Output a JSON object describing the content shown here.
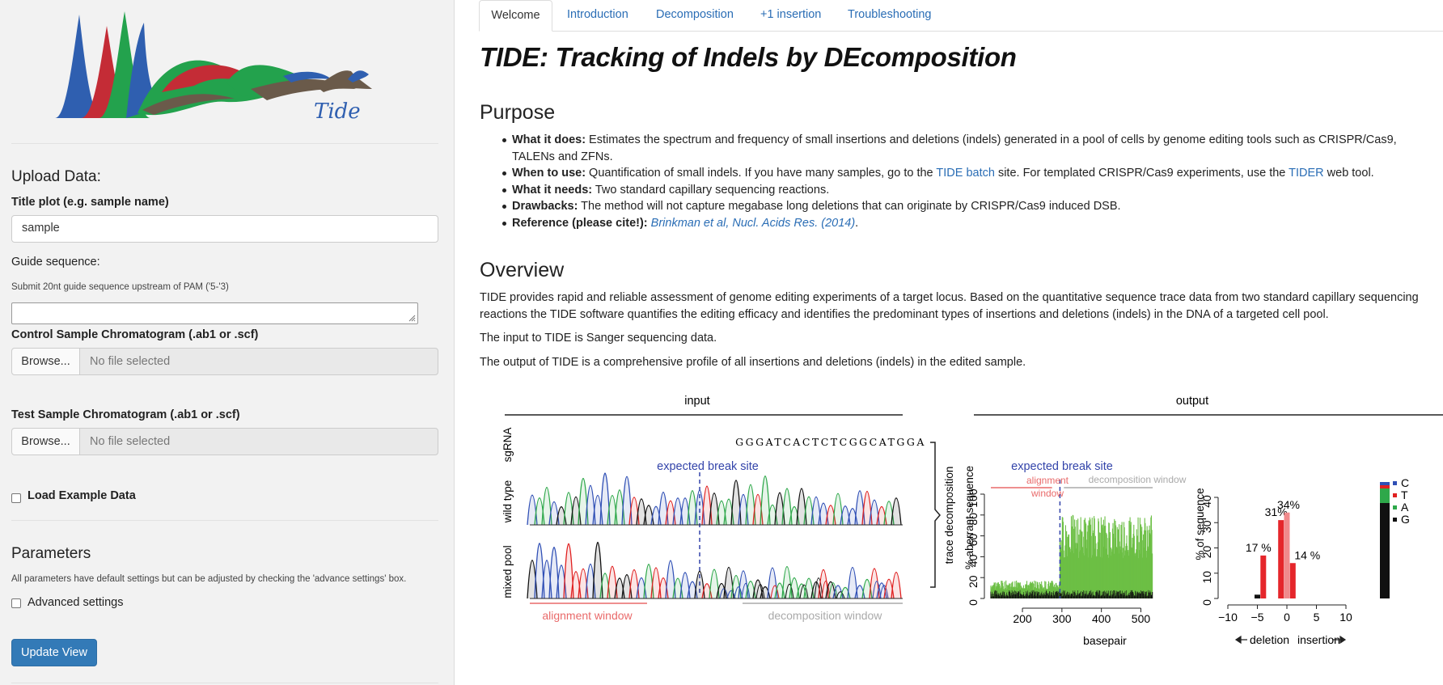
{
  "sidebar": {
    "logo_text": "Tide",
    "upload_heading": "Upload Data:",
    "title_label": "Title plot (e.g. sample name)",
    "title_value": "sample",
    "guide_label": "Guide sequence:",
    "guide_help": "Submit 20nt guide sequence upstream of PAM ('5-'3)",
    "guide_value": "",
    "control_label": "Control Sample Chromatogram (.ab1 or .scf)",
    "control_browse": "Browse...",
    "control_file": "No file selected",
    "test_label": "Test Sample Chromatogram (.ab1 or .scf)",
    "test_browse": "Browse...",
    "test_file": "No file selected",
    "example_label": "Load Example Data",
    "params_heading": "Parameters",
    "params_help": "All parameters have default settings but can be adjusted by checking the 'advance settings' box.",
    "advanced_label": "Advanced settings",
    "update_button": "Update View"
  },
  "tabs": [
    {
      "label": "Welcome",
      "active": true
    },
    {
      "label": "Introduction",
      "active": false
    },
    {
      "label": "Decomposition",
      "active": false
    },
    {
      "label": "+1 insertion",
      "active": false
    },
    {
      "label": "Troubleshooting",
      "active": false
    }
  ],
  "main": {
    "title": "TIDE: Tracking of Indels by DEcomposition",
    "purpose_heading": "Purpose",
    "purpose": {
      "does_label": "What it does:",
      "does_text": " Estimates the spectrum and frequency of small insertions and deletions (indels) generated in a pool of cells by genome editing tools such as CRISPR/Cas9, TALENs and ZFNs.",
      "when_label": "When to use:",
      "when_text1": " Quantification of small indels. If you have many samples, go to the ",
      "when_link1": "TIDE batch",
      "when_text2": " site. For templated CRISPR/Cas9 experiments, use the ",
      "when_link2": "TIDER",
      "when_text3": " web tool.",
      "needs_label": "What it needs:",
      "needs_text": " Two standard capillary sequencing reactions.",
      "draw_label": "Drawbacks:",
      "draw_text": " The method will not capture megabase long deletions that can originate by CRISPR/Cas9 induced DSB.",
      "ref_label": "Reference (please cite!):",
      "ref_link": "Brinkman et al, Nucl. Acids Res. (2014)",
      "ref_end": "."
    },
    "overview_heading": "Overview",
    "overview_p1": "TIDE provides rapid and reliable assessment of genome editing experiments of a target locus. Based on the quantitative sequence trace data from two standard capillary sequencing reactions the TIDE software quantifies the editing efficacy and identifies the predominant types of insertions and deletions (indels) in the DNA of a targeted cell pool.",
    "overview_p2": "The input to TIDE is Sanger sequencing data.",
    "overview_p3": "The output of TIDE is a comprehensive profile of all insertions and deletions (indels) in the edited sample."
  },
  "figure": {
    "input_title": "input",
    "output_title": "output",
    "sgrna_label": "sgRNA",
    "sgrna_seq": "GGGATCACTCTCGGCATGGA",
    "wildtype_label": "wild type",
    "mixed_label": "mixed pool",
    "break_label": "expected break site",
    "alignment_window": "alignment window",
    "decomposition_window": "decomposition window",
    "trace_decomp": "trace decomposition",
    "ylabel1": "% aberrant sequence",
    "xlabel1": "basepair",
    "align_short1": "alignment",
    "align_short2": "window",
    "ylabel2": "% of sequence",
    "deletion": "deletion",
    "insertion": "insertion",
    "legend": [
      "C",
      "T",
      "A",
      "G"
    ],
    "colors": {
      "A": "#2ea84a",
      "C": "#2f4fb5",
      "G": "#111111",
      "T": "#e02020",
      "bp": "#6cbf45",
      "break": "#3344aa",
      "align": "#e96a6a",
      "decomp": "#aaaaaa",
      "bar": "#e5262b",
      "bar_light": "#f08a8c"
    }
  },
  "chart_data": [
    {
      "type": "bar",
      "title": "",
      "xlabel": "basepair",
      "ylabel": "% aberrant sequence",
      "xlim": [
        120,
        540
      ],
      "ylim": [
        0,
        100
      ],
      "x_ticks": [
        200,
        300,
        400,
        500
      ],
      "y_ticks": [
        0,
        20,
        40,
        60,
        80,
        100
      ],
      "series": [
        {
          "x_range": [
            120,
            295
          ],
          "approx_level": 15
        },
        {
          "x_range": [
            295,
            530
          ],
          "approx_level": 70
        }
      ]
    },
    {
      "type": "bar",
      "title": "",
      "xlabel": "deletion / insertion",
      "ylabel": "% of sequence",
      "xlim": [
        -10,
        10
      ],
      "ylim": [
        0,
        40
      ],
      "x_ticks": [
        -10,
        -5,
        0,
        5,
        10
      ],
      "y_ticks": [
        0,
        10,
        20,
        30,
        40
      ],
      "categories": [
        -5,
        -4,
        -1,
        0,
        1
      ],
      "values": [
        1.5,
        17,
        31,
        34,
        14
      ],
      "labels": [
        "",
        "17 %",
        "31%",
        "34%",
        "14 %"
      ]
    }
  ]
}
